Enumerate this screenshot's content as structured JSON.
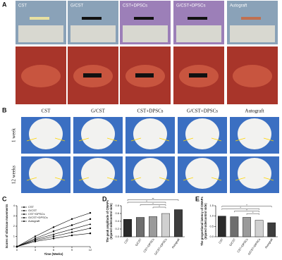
{
  "panel_a": {
    "label": "A",
    "columns": [
      "CST",
      "G/CST",
      "CST+DPSCs",
      "G/CST+DPSCs",
      "Autograft"
    ]
  },
  "panel_b": {
    "label": "B",
    "columns": [
      "CST",
      "G/CST",
      "CST+DPSCs",
      "G/CST+DPSCs",
      "Autograft"
    ],
    "rows": [
      "1 week",
      "12 weeks"
    ]
  },
  "chart_data": [
    {
      "type": "line",
      "label": "C",
      "xlabel": "Time (Weeks)",
      "ylabel": [
        "Scores of vibrissae movements"
      ],
      "x": [
        0,
        3,
        6,
        9,
        12
      ],
      "xlim": [
        0,
        12
      ],
      "xticks": [
        0,
        3,
        6,
        9,
        12
      ],
      "ylim": [
        0,
        4
      ],
      "yticks": [
        0,
        1,
        2,
        3,
        4
      ],
      "legend": "upper left",
      "series": [
        {
          "name": "CST",
          "color": "#000000",
          "values": [
            0,
            0.5,
            0.8,
            1.1,
            1.3
          ]
        },
        {
          "name": "G/CST",
          "color": "#000000",
          "values": [
            0,
            0.6,
            1.0,
            1.4,
            1.8
          ]
        },
        {
          "name": "CST+DPSCs",
          "color": "#000000",
          "values": [
            0,
            0.7,
            1.2,
            1.7,
            2.2
          ]
        },
        {
          "name": "G/CST+DPSCs",
          "color": "#000000",
          "values": [
            0,
            0.8,
            1.5,
            2.1,
            2.7
          ]
        },
        {
          "name": "Autograft",
          "color": "#000000",
          "values": [
            0,
            1.0,
            1.9,
            2.7,
            3.3
          ]
        }
      ]
    },
    {
      "type": "bar",
      "label": "D",
      "ylabel": [
        "The peak amplitude of CMAPs",
        "(Injured side/control side)"
      ],
      "categories": [
        "CST",
        "G/CST",
        "CST+DPSCs",
        "G/CST+DPSCs",
        "Autograft"
      ],
      "values": [
        0.45,
        0.5,
        0.52,
        0.6,
        0.7
      ],
      "colors": [
        "#2b2b2b",
        "#6e6e6e",
        "#9a9a9a",
        "#d0d0d0",
        "#3d3d3d"
      ],
      "ylim": [
        0,
        0.8
      ],
      "yticks": [
        {
          "value": 0,
          "label": "0.0"
        },
        0.2,
        0.4,
        0.6,
        0.8
      ],
      "annotations": [
        "**",
        "*",
        "*",
        "*"
      ]
    },
    {
      "type": "bar",
      "label": "E",
      "ylabel": [
        "The proportional latency of CMAPs",
        "(Injured side/control side)"
      ],
      "categories": [
        "CST",
        "G/CST",
        "CST+DPSCs",
        "G/CST+DPSCs",
        "Autograft"
      ],
      "values": [
        1.0,
        0.97,
        0.94,
        0.8,
        0.68
      ],
      "colors": [
        "#2b2b2b",
        "#6e6e6e",
        "#9a9a9a",
        "#d0d0d0",
        "#3d3d3d"
      ],
      "ylim": [
        0,
        1.5
      ],
      "yticks": [
        {
          "value": 0,
          "label": "0.0"
        },
        0.5,
        {
          "value": 1,
          "label": "1.0"
        },
        1.5
      ],
      "annotations": [
        "*",
        "*",
        "*",
        "*"
      ]
    }
  ]
}
